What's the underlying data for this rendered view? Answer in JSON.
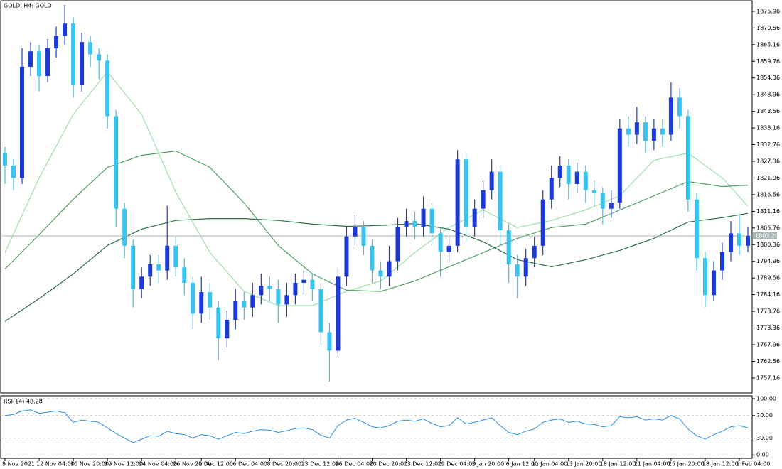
{
  "chart_data": [
    {
      "type": "candlestick",
      "title": "GOLD, H4:  GOLD",
      "categories": [
        "9 Nov 2021",
        null,
        null,
        null,
        "12 Nov 04:00",
        null,
        null,
        null,
        "16 Nov 20:00",
        null,
        null,
        null,
        "19 Nov 12:00",
        null,
        null,
        null,
        "24 Nov 04:00",
        null,
        null,
        null,
        "26 Nov 20:00",
        null,
        null,
        "1 Dec 12:00",
        null,
        null,
        null,
        "6 Dec 04:00",
        null,
        null,
        null,
        "8 Dec 20:00",
        null,
        null,
        null,
        "13 Dec 12:00",
        null,
        null,
        null,
        "16 Dec 04:00",
        null,
        null,
        null,
        "20 Dec 20:00",
        null,
        null,
        null,
        "23 Dec 12:00",
        null,
        null,
        null,
        "29 Dec 04:00",
        null,
        null,
        null,
        "3 Jan 20:00",
        null,
        null,
        null,
        "6 Jan 12:00",
        null,
        null,
        "11 Jan 04:00",
        null,
        null,
        null,
        "13 Jan 20:00",
        null,
        null,
        null,
        "18 Jan 12:00",
        null,
        null,
        null,
        "21 Jan 04:00",
        null,
        null,
        null,
        "25 Jan 20:00",
        null,
        null,
        null,
        "28 Jan 12:00",
        null,
        null,
        null,
        "2 Feb 04:00",
        null
      ],
      "open": [
        1830,
        1826,
        1822,
        1858,
        1863,
        1855,
        1864,
        1868,
        1872,
        1852,
        1866,
        1862,
        1860,
        1842,
        1812,
        1800,
        1786,
        1790,
        1794,
        1792,
        1800,
        1793,
        1788,
        1778,
        1785,
        1780,
        1770,
        1776,
        1782,
        1780,
        1784,
        1787,
        1786,
        1781,
        1784,
        1788,
        1789,
        1786,
        1772,
        1766,
        1790,
        1803,
        1806,
        1800,
        1792,
        1790,
        1795,
        1806,
        1808,
        1806,
        1812,
        1804,
        1798,
        1800,
        1828,
        1806,
        1812,
        1818,
        1824,
        1805,
        1794,
        1790,
        1796,
        1800,
        1815,
        1822,
        1826,
        1820,
        1824,
        1818,
        1817,
        1812,
        1814,
        1838,
        1836,
        1840,
        1834,
        1838,
        1836,
        1848,
        1842,
        1815,
        1796,
        1784,
        1792,
        1798,
        1804,
        1800
      ],
      "high": [
        1832,
        1828,
        1864,
        1866,
        1865,
        1867,
        1871,
        1878,
        1874,
        1869,
        1868,
        1864,
        1862,
        1844,
        1814,
        1802,
        1793,
        1797,
        1797,
        1813,
        1803,
        1796,
        1790,
        1790,
        1788,
        1782,
        1779,
        1786,
        1785,
        1788,
        1791,
        1790,
        1789,
        1788,
        1791,
        1792,
        1791,
        1788,
        1775,
        1793,
        1806,
        1810,
        1808,
        1802,
        1795,
        1800,
        1809,
        1812,
        1811,
        1816,
        1814,
        1806,
        1803,
        1831,
        1830,
        1815,
        1821,
        1828,
        1826,
        1807,
        1797,
        1799,
        1803,
        1818,
        1826,
        1829,
        1828,
        1827,
        1826,
        1821,
        1819,
        1818,
        1841,
        1842,
        1845,
        1842,
        1841,
        1841,
        1853,
        1851,
        1844,
        1817,
        1798,
        1795,
        1801,
        1808,
        1810,
        1806
      ],
      "low": [
        1820,
        1818,
        1820,
        1855,
        1850,
        1853,
        1861,
        1865,
        1848,
        1850,
        1858,
        1854,
        1838,
        1806,
        1796,
        1780,
        1783,
        1787,
        1788,
        1789,
        1790,
        1784,
        1773,
        1775,
        1776,
        1763,
        1767,
        1773,
        1776,
        1777,
        1781,
        1782,
        1775,
        1777,
        1781,
        1784,
        1782,
        1768,
        1756,
        1764,
        1787,
        1800,
        1797,
        1788,
        1786,
        1787,
        1792,
        1803,
        1802,
        1803,
        1800,
        1790,
        1795,
        1798,
        1801,
        1803,
        1809,
        1815,
        1800,
        1788,
        1783,
        1787,
        1793,
        1797,
        1812,
        1819,
        1815,
        1817,
        1814,
        1813,
        1807,
        1809,
        1812,
        1832,
        1833,
        1830,
        1831,
        1832,
        1834,
        1838,
        1811,
        1792,
        1780,
        1782,
        1789,
        1795,
        1797,
        1798
      ],
      "close": [
        1826,
        1822,
        1858,
        1863,
        1855,
        1864,
        1868,
        1872,
        1852,
        1866,
        1862,
        1860,
        1842,
        1812,
        1800,
        1786,
        1790,
        1794,
        1792,
        1800,
        1793,
        1788,
        1778,
        1785,
        1780,
        1770,
        1776,
        1782,
        1780,
        1784,
        1787,
        1786,
        1781,
        1784,
        1788,
        1789,
        1786,
        1772,
        1766,
        1790,
        1803,
        1806,
        1800,
        1792,
        1790,
        1795,
        1806,
        1808,
        1806,
        1812,
        1804,
        1798,
        1800,
        1828,
        1806,
        1812,
        1818,
        1824,
        1805,
        1794,
        1790,
        1796,
        1800,
        1815,
        1822,
        1826,
        1820,
        1824,
        1818,
        1817,
        1812,
        1814,
        1838,
        1836,
        1840,
        1834,
        1838,
        1836,
        1848,
        1842,
        1815,
        1796,
        1784,
        1792,
        1798,
        1804,
        1800,
        1803.2
      ],
      "up_color": "#1c3ad8",
      "down_color": "#38c4f0",
      "series": [
        {
          "color": "#9ee0a8",
          "x": [
            0,
            4,
            8,
            12,
            16,
            20,
            24,
            28,
            32,
            36,
            40,
            44,
            48,
            52,
            56,
            60,
            64,
            68,
            72,
            76,
            80,
            84,
            87
          ],
          "values": [
            1797.8,
            1822,
            1842.6,
            1856.4,
            1842.6,
            1817.4,
            1797.8,
            1785.2,
            1780.6,
            1780.6,
            1785.2,
            1788.6,
            1797.8,
            1805.9,
            1811.6,
            1805.9,
            1808.2,
            1811.6,
            1816.2,
            1827.7,
            1830,
            1822,
            1812.8
          ]
        },
        {
          "color": "#4f9f63",
          "x": [
            0,
            4,
            8,
            12,
            16,
            20,
            24,
            28,
            32,
            36,
            40,
            44,
            48,
            52,
            56,
            60,
            64,
            68,
            72,
            76,
            80,
            84,
            87
          ],
          "values": [
            1792.5,
            1803.6,
            1815.1,
            1825.4,
            1829.3,
            1830.7,
            1825.4,
            1813.9,
            1800.1,
            1790.9,
            1785.6,
            1785.2,
            1788.6,
            1793.2,
            1797.8,
            1802.4,
            1805.9,
            1807,
            1811.6,
            1816.2,
            1820.8,
            1819.2,
            1819.6
          ]
        },
        {
          "color": "#2c6e45",
          "x": [
            0,
            4,
            8,
            12,
            16,
            20,
            24,
            28,
            32,
            36,
            40,
            44,
            48,
            52,
            56,
            60,
            64,
            68,
            72,
            76,
            80,
            84,
            87
          ],
          "values": [
            1775.5,
            1782.9,
            1790.9,
            1800.1,
            1805.4,
            1808.2,
            1808.8,
            1808.8,
            1808.2,
            1807,
            1806.3,
            1806.6,
            1807.2,
            1805.4,
            1801.3,
            1795.5,
            1793.2,
            1795.5,
            1798.5,
            1802.4,
            1807.7,
            1809.1,
            1810.5
          ]
        }
      ],
      "current_price": {
        "value": 1803.2,
        "label": "1803.20"
      },
      "current_price_color": "#a9b6b6",
      "ylim": [
        1752.3,
        1879.4
      ],
      "yticks": [
        1875.96,
        1870.56,
        1865.16,
        1859.76,
        1854.36,
        1848.96,
        1843.56,
        1838.16,
        1832.76,
        1827.36,
        1821.96,
        1816.56,
        1811.16,
        1805.76,
        1800.36,
        1794.96,
        1789.56,
        1784.16,
        1778.76,
        1773.36,
        1767.96,
        1762.56,
        1757.16
      ]
    },
    {
      "type": "line",
      "title": "RSI(14) 48.28",
      "color": "#2b8ee8",
      "values": [
        70,
        72,
        78,
        80,
        74,
        76,
        78,
        75,
        58,
        62,
        60,
        58,
        48,
        38,
        30,
        22,
        28,
        34,
        33,
        42,
        38,
        36,
        30,
        36,
        34,
        28,
        34,
        40,
        38,
        42,
        45,
        44,
        40,
        43,
        47,
        48,
        45,
        35,
        30,
        52,
        62,
        65,
        58,
        50,
        48,
        52,
        60,
        62,
        60,
        64,
        56,
        50,
        52,
        66,
        55,
        58,
        62,
        66,
        52,
        40,
        36,
        42,
        46,
        58,
        62,
        64,
        58,
        60,
        55,
        54,
        50,
        52,
        68,
        66,
        68,
        62,
        64,
        62,
        70,
        64,
        46,
        34,
        28,
        36,
        42,
        50,
        52,
        48.28
      ],
      "ylim": [
        -6,
        105
      ],
      "yticks": [
        {
          "value": 100,
          "label": "100.00"
        },
        {
          "value": 70,
          "label": "70.00"
        },
        {
          "value": 30,
          "label": "30.00"
        },
        {
          "value": 0,
          "label": "0.00"
        }
      ],
      "grid": true
    }
  ]
}
